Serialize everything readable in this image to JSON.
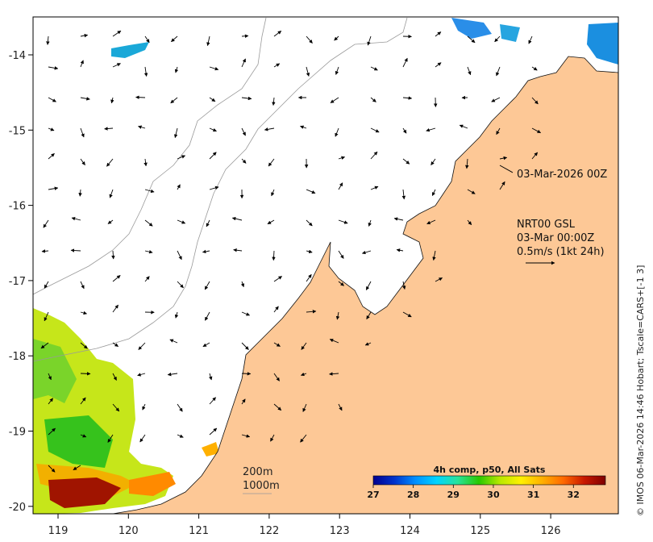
{
  "map": {
    "x_axis": {
      "ticks": [
        "119",
        "120",
        "121",
        "122",
        "123",
        "124",
        "125",
        "126"
      ]
    },
    "y_axis": {
      "ticks": [
        "-14",
        "-15",
        "-16",
        "-17",
        "-18",
        "-19",
        "-20"
      ]
    },
    "colors": {
      "land": "#fdc896",
      "ocean": "#ffffff",
      "coast": "#111111",
      "bathymetry": "#9a9a9a",
      "frame": "#000000"
    }
  },
  "annotations": {
    "timestamp_label": "03-Mar-2026 00Z",
    "product_line1": "NRT00 GSL",
    "product_line2": "03-Mar 00:00Z",
    "product_line3": "0.5m/s (1kt 24h)",
    "depth_200": "200m",
    "depth_1000": "1000m"
  },
  "colorbar": {
    "title": "4h comp, p50, All Sats",
    "ticks": [
      "27",
      "28",
      "29",
      "30",
      "31",
      "32"
    ],
    "colormap": [
      "#00008f",
      "#0033cc",
      "#0090ff",
      "#00d4ff",
      "#27e39a",
      "#28c800",
      "#b8e800",
      "#fff000",
      "#ffb000",
      "#ff6a00",
      "#c81800",
      "#7f0000"
    ]
  },
  "credit": "© IMOS 06-Mar-2026 14:46 Hobart; Tscale=CARS+[-1 3]"
}
